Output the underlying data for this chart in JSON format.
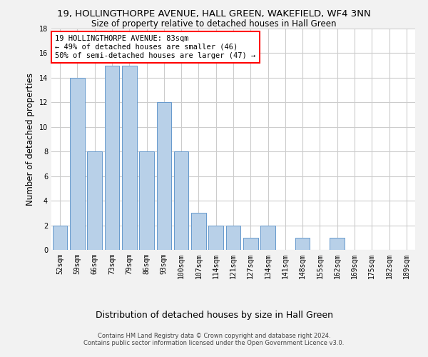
{
  "title": "19, HOLLINGTHORPE AVENUE, HALL GREEN, WAKEFIELD, WF4 3NN",
  "subtitle": "Size of property relative to detached houses in Hall Green",
  "xlabel": "Distribution of detached houses by size in Hall Green",
  "ylabel": "Number of detached properties",
  "categories": [
    "52sqm",
    "59sqm",
    "66sqm",
    "73sqm",
    "79sqm",
    "86sqm",
    "93sqm",
    "100sqm",
    "107sqm",
    "114sqm",
    "121sqm",
    "127sqm",
    "134sqm",
    "141sqm",
    "148sqm",
    "155sqm",
    "162sqm",
    "169sqm",
    "175sqm",
    "182sqm",
    "189sqm"
  ],
  "values": [
    2,
    14,
    8,
    15,
    15,
    8,
    12,
    8,
    3,
    2,
    2,
    1,
    2,
    0,
    1,
    0,
    1,
    0,
    0,
    0,
    0
  ],
  "bar_color": "#b8d0e8",
  "bar_edge_color": "#6699cc",
  "ylim": [
    0,
    18
  ],
  "yticks": [
    0,
    2,
    4,
    6,
    8,
    10,
    12,
    14,
    16,
    18
  ],
  "annotation_line1": "19 HOLLINGTHORPE AVENUE: 83sqm",
  "annotation_line2": "← 49% of detached houses are smaller (46)",
  "annotation_line3": "50% of semi-detached houses are larger (47) →",
  "footer_line1": "Contains HM Land Registry data © Crown copyright and database right 2024.",
  "footer_line2": "Contains public sector information licensed under the Open Government Licence v3.0.",
  "background_color": "#f2f2f2",
  "plot_background_color": "#ffffff",
  "grid_color": "#cccccc",
  "title_fontsize": 9.5,
  "subtitle_fontsize": 8.5,
  "ylabel_fontsize": 8.5,
  "xlabel_fontsize": 9,
  "tick_fontsize": 7,
  "annotation_fontsize": 7.5,
  "footer_fontsize": 6
}
